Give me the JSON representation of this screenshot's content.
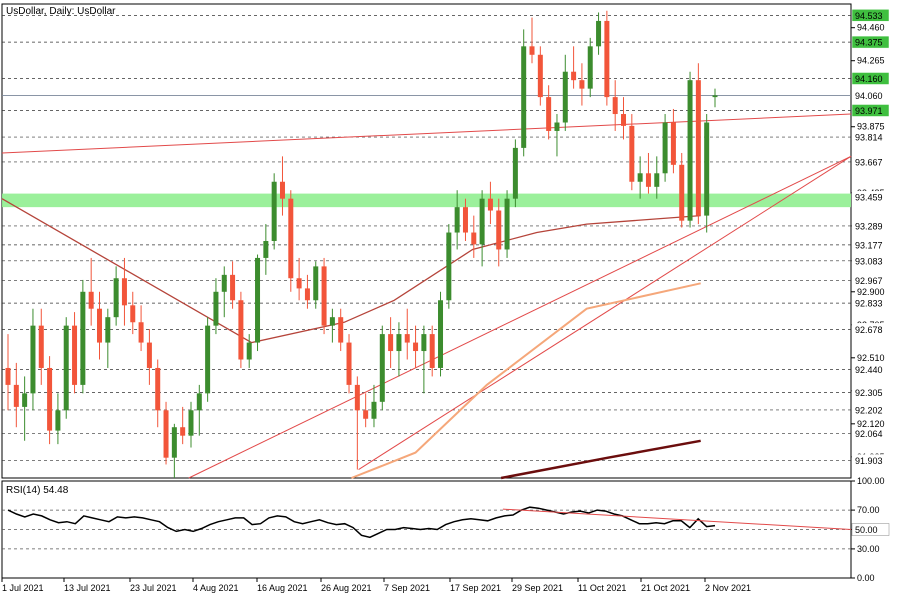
{
  "chart_data": [
    {
      "type": "candlestick",
      "title": "UsDollar, Daily:  UsDollar",
      "ylim": [
        91.8,
        94.6
      ],
      "y_ticks": [
        "94.460",
        "94.265",
        "93.875",
        "93.485",
        "93.289",
        "93.083",
        "92.900",
        "92.705",
        "92.510",
        "92.315",
        "92.120",
        "91.925"
      ],
      "price_labels": [
        {
          "value": 94.533,
          "label": "94.533",
          "color": "#3fbf3f",
          "text_color": "#000000"
        },
        {
          "value": 94.375,
          "label": "94.375",
          "color": "#3fbf3f",
          "text_color": "#000000"
        },
        {
          "value": 94.16,
          "label": "94.160",
          "color": "#3fbf3f",
          "text_color": "#000000"
        },
        {
          "value": 94.06,
          "label": "94.060",
          "color": "#ffffff",
          "text_color": "#000000"
        },
        {
          "value": 93.971,
          "label": "93.971",
          "color": "#3fbf3f",
          "text_color": "#000000"
        },
        {
          "value": 93.814,
          "label": "93.814",
          "color": "#ffffff",
          "text_color": "#000000"
        },
        {
          "value": 93.667,
          "label": "93.667",
          "color": "#ffffff",
          "text_color": "#000000"
        },
        {
          "value": 93.459,
          "label": "93.459",
          "color": "#ffffff",
          "text_color": "#000000"
        },
        {
          "value": 93.289,
          "label": "93.289",
          "color": "#ffffff",
          "text_color": "#000000"
        },
        {
          "value": 93.177,
          "label": "93.177",
          "color": "#ffffff",
          "text_color": "#000000"
        },
        {
          "value": 93.083,
          "label": "93.083",
          "color": "#ffffff",
          "text_color": "#000000"
        },
        {
          "value": 92.967,
          "label": "92.967",
          "color": "#ffffff",
          "text_color": "#000000"
        },
        {
          "value": 92.833,
          "label": "92.833",
          "color": "#ffffff",
          "text_color": "#000000"
        },
        {
          "value": 92.678,
          "label": "92.678",
          "color": "#ffffff",
          "text_color": "#000000"
        },
        {
          "value": 92.44,
          "label": "92.440",
          "color": "#ffffff",
          "text_color": "#000000"
        },
        {
          "value": 92.305,
          "label": "92.305",
          "color": "#ffffff",
          "text_color": "#000000"
        },
        {
          "value": 92.202,
          "label": "92.202",
          "color": "#ffffff",
          "text_color": "#000000"
        },
        {
          "value": 92.064,
          "label": "92.064",
          "color": "#ffffff",
          "text_color": "#000000"
        },
        {
          "value": 91.903,
          "label": "91.903",
          "color": "#ffffff",
          "text_color": "#000000"
        }
      ],
      "horizontal_levels": [
        94.533,
        94.375,
        94.16,
        93.971,
        93.814,
        93.667,
        93.289,
        93.177,
        93.083,
        92.967,
        92.833,
        92.678,
        92.44,
        92.305,
        92.202,
        92.064,
        91.903
      ],
      "current_price_line": 94.06,
      "support_zone": {
        "from": 93.4,
        "to": 93.48,
        "color": "#90ee90"
      },
      "x_labels": [
        "1 Jul 2021",
        "13 Jul 2021",
        "23 Jul 2021",
        "4 Aug 2021",
        "16 Aug 2021",
        "26 Aug 2021",
        "7 Sep 2021",
        "17 Sep 2021",
        "29 Sep 2021",
        "11 Oct 2021",
        "21 Oct 2021",
        "2 Nov 2021"
      ],
      "colors": {
        "bull": "#3c8c2e",
        "bear": "#f2553a",
        "ma50": "#b5443a",
        "ma100": "#f5a77a",
        "ma200": "#6b0d0d",
        "trend": "#e24a4a",
        "grid": "#000000"
      },
      "candles": [
        {
          "o": 92.45,
          "h": 92.65,
          "l": 92.2,
          "c": 92.35
        },
        {
          "o": 92.35,
          "h": 92.48,
          "l": 92.1,
          "c": 92.22
        },
        {
          "o": 92.22,
          "h": 92.4,
          "l": 92.02,
          "c": 92.3
        },
        {
          "o": 92.3,
          "h": 92.8,
          "l": 92.2,
          "c": 92.7
        },
        {
          "o": 92.7,
          "h": 92.8,
          "l": 92.35,
          "c": 92.45
        },
        {
          "o": 92.45,
          "h": 92.52,
          "l": 92.0,
          "c": 92.08
        },
        {
          "o": 92.08,
          "h": 92.3,
          "l": 92.0,
          "c": 92.2
        },
        {
          "o": 92.2,
          "h": 92.75,
          "l": 92.15,
          "c": 92.7
        },
        {
          "o": 92.7,
          "h": 92.78,
          "l": 92.3,
          "c": 92.35
        },
        {
          "o": 92.35,
          "h": 92.97,
          "l": 92.3,
          "c": 92.9
        },
        {
          "o": 92.9,
          "h": 93.1,
          "l": 92.7,
          "c": 92.8
        },
        {
          "o": 92.8,
          "h": 92.9,
          "l": 92.5,
          "c": 92.6
        },
        {
          "o": 92.6,
          "h": 92.8,
          "l": 92.45,
          "c": 92.75
        },
        {
          "o": 92.75,
          "h": 93.05,
          "l": 92.7,
          "c": 92.98
        },
        {
          "o": 92.98,
          "h": 93.1,
          "l": 92.7,
          "c": 92.82
        },
        {
          "o": 92.82,
          "h": 92.9,
          "l": 92.65,
          "c": 92.72
        },
        {
          "o": 92.72,
          "h": 92.82,
          "l": 92.55,
          "c": 92.6
        },
        {
          "o": 92.6,
          "h": 92.68,
          "l": 92.35,
          "c": 92.45
        },
        {
          "o": 92.45,
          "h": 92.5,
          "l": 92.1,
          "c": 92.2
        },
        {
          "o": 92.2,
          "h": 92.25,
          "l": 91.88,
          "c": 91.92
        },
        {
          "o": 91.92,
          "h": 92.12,
          "l": 91.8,
          "c": 92.1
        },
        {
          "o": 92.1,
          "h": 92.22,
          "l": 92.0,
          "c": 92.05
        },
        {
          "o": 92.05,
          "h": 92.25,
          "l": 91.98,
          "c": 92.2
        },
        {
          "o": 92.2,
          "h": 92.35,
          "l": 92.05,
          "c": 92.3
        },
        {
          "o": 92.3,
          "h": 92.75,
          "l": 92.25,
          "c": 92.7
        },
        {
          "o": 92.7,
          "h": 92.98,
          "l": 92.65,
          "c": 92.9
        },
        {
          "o": 92.9,
          "h": 93.05,
          "l": 92.75,
          "c": 93.0
        },
        {
          "o": 93.0,
          "h": 93.08,
          "l": 92.8,
          "c": 92.85
        },
        {
          "o": 92.85,
          "h": 92.9,
          "l": 92.45,
          "c": 92.5
        },
        {
          "o": 92.5,
          "h": 92.65,
          "l": 92.45,
          "c": 92.6
        },
        {
          "o": 92.6,
          "h": 93.12,
          "l": 92.55,
          "c": 93.1
        },
        {
          "o": 93.1,
          "h": 93.3,
          "l": 93.0,
          "c": 93.2
        },
        {
          "o": 93.2,
          "h": 93.6,
          "l": 93.15,
          "c": 93.55
        },
        {
          "o": 93.55,
          "h": 93.7,
          "l": 93.35,
          "c": 93.45
        },
        {
          "o": 93.45,
          "h": 93.5,
          "l": 92.9,
          "c": 92.98
        },
        {
          "o": 92.98,
          "h": 93.1,
          "l": 92.85,
          "c": 92.92
        },
        {
          "o": 92.92,
          "h": 93.0,
          "l": 92.8,
          "c": 92.85
        },
        {
          "o": 92.85,
          "h": 93.08,
          "l": 92.8,
          "c": 93.05
        },
        {
          "o": 93.05,
          "h": 93.1,
          "l": 92.65,
          "c": 92.7
        },
        {
          "o": 92.7,
          "h": 92.8,
          "l": 92.6,
          "c": 92.75
        },
        {
          "o": 92.75,
          "h": 92.8,
          "l": 92.55,
          "c": 92.6
        },
        {
          "o": 92.6,
          "h": 92.65,
          "l": 92.3,
          "c": 92.35
        },
        {
          "o": 92.35,
          "h": 92.4,
          "l": 91.85,
          "c": 92.2
        },
        {
          "o": 92.2,
          "h": 92.3,
          "l": 92.1,
          "c": 92.15
        },
        {
          "o": 92.15,
          "h": 92.35,
          "l": 92.1,
          "c": 92.25
        },
        {
          "o": 92.25,
          "h": 92.7,
          "l": 92.2,
          "c": 92.65
        },
        {
          "o": 92.65,
          "h": 92.75,
          "l": 92.45,
          "c": 92.55
        },
        {
          "o": 92.55,
          "h": 92.72,
          "l": 92.4,
          "c": 92.65
        },
        {
          "o": 92.65,
          "h": 92.8,
          "l": 92.5,
          "c": 92.6
        },
        {
          "o": 92.6,
          "h": 92.7,
          "l": 92.45,
          "c": 92.55
        },
        {
          "o": 92.55,
          "h": 92.7,
          "l": 92.3,
          "c": 92.65
        },
        {
          "o": 92.65,
          "h": 92.7,
          "l": 92.4,
          "c": 92.45
        },
        {
          "o": 92.45,
          "h": 92.9,
          "l": 92.4,
          "c": 92.85
        },
        {
          "o": 92.85,
          "h": 93.3,
          "l": 92.8,
          "c": 93.25
        },
        {
          "o": 93.25,
          "h": 93.5,
          "l": 93.15,
          "c": 93.4
        },
        {
          "o": 93.4,
          "h": 93.45,
          "l": 93.2,
          "c": 93.25
        },
        {
          "o": 93.25,
          "h": 93.35,
          "l": 93.1,
          "c": 93.18
        },
        {
          "o": 93.18,
          "h": 93.5,
          "l": 93.05,
          "c": 93.45
        },
        {
          "o": 93.45,
          "h": 93.55,
          "l": 93.3,
          "c": 93.38
        },
        {
          "o": 93.38,
          "h": 93.45,
          "l": 93.05,
          "c": 93.15
        },
        {
          "o": 93.15,
          "h": 93.5,
          "l": 93.1,
          "c": 93.45
        },
        {
          "o": 93.45,
          "h": 93.8,
          "l": 93.4,
          "c": 93.75
        },
        {
          "o": 93.75,
          "h": 94.45,
          "l": 93.7,
          "c": 94.35
        },
        {
          "o": 94.35,
          "h": 94.52,
          "l": 94.25,
          "c": 94.3
        },
        {
          "o": 94.3,
          "h": 94.35,
          "l": 94.0,
          "c": 94.05
        },
        {
          "o": 94.05,
          "h": 94.12,
          "l": 93.8,
          "c": 93.85
        },
        {
          "o": 93.85,
          "h": 93.95,
          "l": 93.7,
          "c": 93.9
        },
        {
          "o": 93.9,
          "h": 94.3,
          "l": 93.85,
          "c": 94.2
        },
        {
          "o": 94.2,
          "h": 94.35,
          "l": 94.1,
          "c": 94.15
        },
        {
          "o": 94.15,
          "h": 94.25,
          "l": 94.0,
          "c": 94.1
        },
        {
          "o": 94.1,
          "h": 94.4,
          "l": 94.05,
          "c": 94.35
        },
        {
          "o": 94.35,
          "h": 94.55,
          "l": 94.3,
          "c": 94.5
        },
        {
          "o": 94.5,
          "h": 94.56,
          "l": 94.0,
          "c": 94.05
        },
        {
          "o": 94.05,
          "h": 94.15,
          "l": 93.85,
          "c": 93.95
        },
        {
          "o": 93.95,
          "h": 94.05,
          "l": 93.8,
          "c": 93.88
        },
        {
          "o": 93.88,
          "h": 93.95,
          "l": 93.5,
          "c": 93.55
        },
        {
          "o": 93.55,
          "h": 93.7,
          "l": 93.45,
          "c": 93.6
        },
        {
          "o": 93.6,
          "h": 93.72,
          "l": 93.48,
          "c": 93.52
        },
        {
          "o": 93.52,
          "h": 93.7,
          "l": 93.45,
          "c": 93.6
        },
        {
          "o": 93.6,
          "h": 93.95,
          "l": 93.55,
          "c": 93.9
        },
        {
          "o": 93.9,
          "h": 93.98,
          "l": 93.6,
          "c": 93.65
        },
        {
          "o": 93.65,
          "h": 93.72,
          "l": 93.28,
          "c": 93.32
        },
        {
          "o": 93.32,
          "h": 94.2,
          "l": 93.28,
          "c": 94.15
        },
        {
          "o": 94.15,
          "h": 94.25,
          "l": 93.3,
          "c": 93.35
        },
        {
          "o": 93.35,
          "h": 93.95,
          "l": 93.25,
          "c": 93.9
        },
        {
          "o": 94.05,
          "h": 94.1,
          "l": 93.99,
          "c": 94.06
        }
      ],
      "ma50": [
        [
          0,
          93.45
        ],
        [
          0.35,
          92.6
        ],
        [
          0.48,
          92.72
        ],
        [
          0.55,
          92.85
        ],
        [
          0.66,
          93.15
        ],
        [
          0.75,
          93.25
        ],
        [
          0.82,
          93.3
        ],
        [
          0.98,
          93.35
        ]
      ],
      "ma100": [
        [
          0.49,
          91.8
        ],
        [
          0.58,
          91.95
        ],
        [
          0.68,
          92.35
        ],
        [
          0.82,
          92.8
        ],
        [
          0.98,
          92.95
        ]
      ],
      "ma200": [
        [
          0.7,
          91.8
        ],
        [
          0.85,
          91.92
        ],
        [
          0.98,
          92.02
        ]
      ],
      "trendlines": [
        {
          "from": [
            0,
            93.72
          ],
          "to": [
            1,
            93.95
          ]
        },
        {
          "from": [
            0.22,
            91.8
          ],
          "to": [
            1,
            93.7
          ]
        },
        {
          "from": [
            0.42,
            91.85
          ],
          "to": [
            1,
            93.7
          ]
        }
      ]
    },
    {
      "type": "line",
      "title": "RSI(14) 54.48",
      "ylim": [
        0,
        100
      ],
      "y_ticks": [
        "100.00",
        "70.00",
        "50.00",
        "30.00",
        "0.00"
      ],
      "level_labels": [
        {
          "value": 50.0,
          "label": "50.00"
        }
      ],
      "levels": [
        70,
        50,
        30
      ],
      "values": [
        70,
        66,
        63,
        66,
        64,
        60,
        57,
        58,
        56,
        64,
        62,
        60,
        58,
        63,
        62,
        63,
        62,
        60,
        58,
        52,
        48,
        50,
        48,
        51,
        55,
        58,
        60,
        62,
        62,
        55,
        56,
        62,
        64,
        63,
        58,
        56,
        58,
        60,
        57,
        55,
        56,
        52,
        44,
        42,
        46,
        50,
        50,
        52,
        51,
        50,
        51,
        50,
        55,
        58,
        60,
        61,
        60,
        59,
        62,
        64,
        65,
        70,
        73,
        72,
        70,
        68,
        66,
        68,
        69,
        67,
        70,
        69,
        66,
        64,
        60,
        56,
        56,
        57,
        56,
        59,
        59,
        52,
        61,
        53,
        54
      ],
      "trendline": {
        "from": [
          0.59,
          71.0
        ],
        "to": [
          1,
          50.0
        ]
      },
      "color": "#000000",
      "trend_color": "#e24a4a"
    }
  ]
}
